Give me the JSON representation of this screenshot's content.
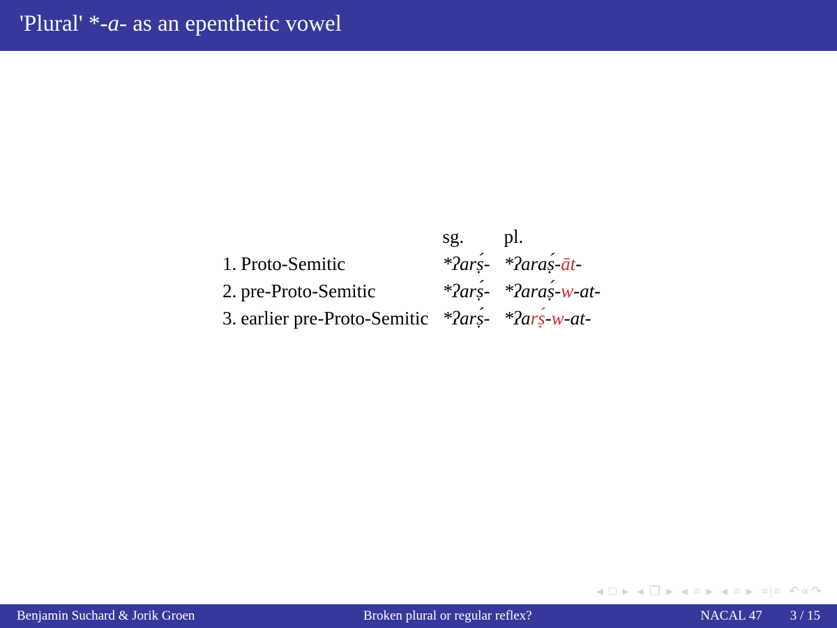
{
  "colors": {
    "header_bg": "#38389c",
    "header_text": "#ffffff",
    "body_bg": "#ffffff",
    "body_text": "#000000",
    "highlight": "#c83232",
    "nav_icon": "#d3d3d8"
  },
  "typography": {
    "title_fontsize_pt": 25,
    "body_fontsize_pt": 20,
    "footer_fontsize_pt": 14,
    "font_family": "serif"
  },
  "title": {
    "prefix": "'Plural' *-",
    "italic": "a",
    "suffix": "- as an epenthetic vowel"
  },
  "table": {
    "headers": {
      "sg": "sg.",
      "pl": "pl."
    },
    "rows": [
      {
        "num": "1.",
        "label": "Proto-Semitic",
        "sg": {
          "segments": [
            {
              "t": "*ʔarṣ́-",
              "it": true
            }
          ]
        },
        "pl": {
          "segments": [
            {
              "t": "*ʔaraṣ́-",
              "it": true
            },
            {
              "t": "āt",
              "it": true,
              "red": true
            },
            {
              "t": "-",
              "it": true
            }
          ]
        }
      },
      {
        "num": "2.",
        "label": "pre-Proto-Semitic",
        "sg": {
          "segments": [
            {
              "t": "*ʔarṣ́-",
              "it": true
            }
          ]
        },
        "pl": {
          "segments": [
            {
              "t": "*ʔaraṣ́-",
              "it": true
            },
            {
              "t": "w",
              "it": true,
              "red": true
            },
            {
              "t": "-at-",
              "it": true
            }
          ]
        }
      },
      {
        "num": "3.",
        "label": "earlier pre-Proto-Semitic",
        "sg": {
          "segments": [
            {
              "t": "*ʔarṣ́-",
              "it": true
            }
          ]
        },
        "pl": {
          "segments": [
            {
              "t": "*ʔa",
              "it": true
            },
            {
              "t": "rṣ́",
              "it": true,
              "red": true
            },
            {
              "t": "-",
              "it": true
            },
            {
              "t": "w",
              "it": true,
              "red": true
            },
            {
              "t": "-at-",
              "it": true
            }
          ]
        }
      }
    ]
  },
  "nav": {
    "first": "◂ □ ▸",
    "pages": "◂ ❐ ▸",
    "prev_sec": "◂ ≡ ▸",
    "next_sec": "◂ ≡ ▸",
    "outline": "≡|≡",
    "undo": "↶∝↷"
  },
  "footer": {
    "authors": "Benjamin Suchard & Jorik Groen",
    "short_title": "Broken plural or regular reflex?",
    "venue": "NACAL 47",
    "page": "3 / 15"
  }
}
